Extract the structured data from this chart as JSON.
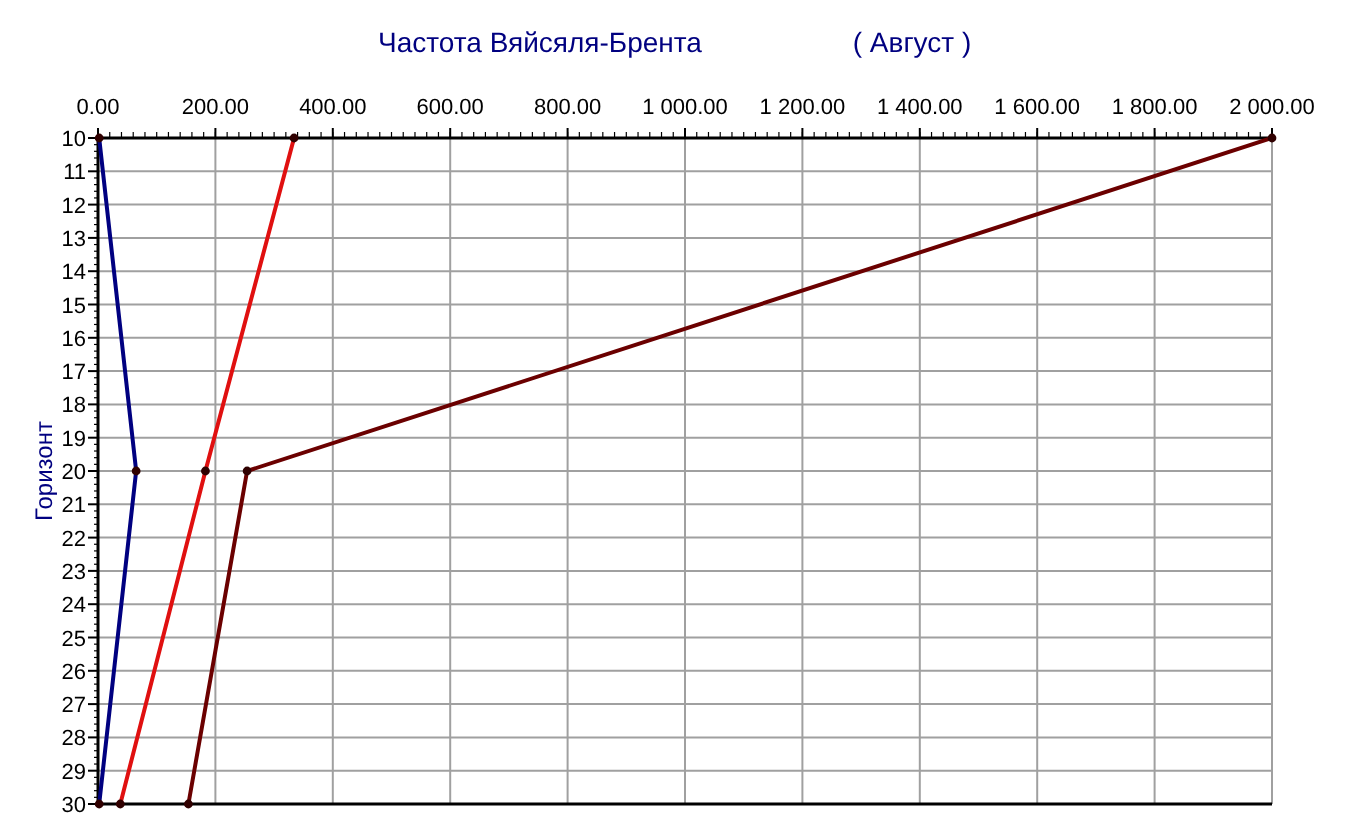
{
  "chart_data": {
    "type": "line",
    "orientation": "horizontal",
    "title": "Частота Вяйсяля-Брента",
    "subtitle": "( Август )",
    "ylabel": "Горизонт",
    "categories": [
      "10",
      "11",
      "12",
      "13",
      "14",
      "15",
      "16",
      "17",
      "18",
      "19",
      "20",
      "21",
      "22",
      "23",
      "24",
      "25",
      "26",
      "27",
      "28",
      "29",
      "30"
    ],
    "xlim": [
      0,
      2000
    ],
    "xticks": [
      {
        "value": 0,
        "label": "0.00"
      },
      {
        "value": 200,
        "label": "200.00"
      },
      {
        "value": 400,
        "label": "400.00"
      },
      {
        "value": 600,
        "label": "600.00"
      },
      {
        "value": 800,
        "label": "800.00"
      },
      {
        "value": 1000,
        "label": "1 000.00"
      },
      {
        "value": 1200,
        "label": "1 200.00"
      },
      {
        "value": 1400,
        "label": "1 400.00"
      },
      {
        "value": 1600,
        "label": "1 600.00"
      },
      {
        "value": 1800,
        "label": "1 800.00"
      },
      {
        "value": 2000,
        "label": "2 000.00"
      }
    ],
    "grid": true,
    "marker": "circle",
    "series": [
      {
        "color": "#000080",
        "values": [
          2,
          null,
          null,
          null,
          null,
          null,
          null,
          null,
          null,
          null,
          65,
          null,
          null,
          null,
          null,
          null,
          null,
          null,
          null,
          null,
          2
        ]
      },
      {
        "color": "#e01010",
        "values": [
          334,
          null,
          null,
          null,
          null,
          null,
          null,
          null,
          null,
          null,
          183,
          null,
          null,
          null,
          null,
          null,
          null,
          null,
          null,
          null,
          38
        ]
      },
      {
        "color": "#6b0000",
        "values": [
          2000,
          null,
          null,
          null,
          null,
          null,
          null,
          null,
          null,
          null,
          254,
          null,
          null,
          null,
          null,
          null,
          null,
          null,
          null,
          null,
          154
        ]
      }
    ]
  }
}
